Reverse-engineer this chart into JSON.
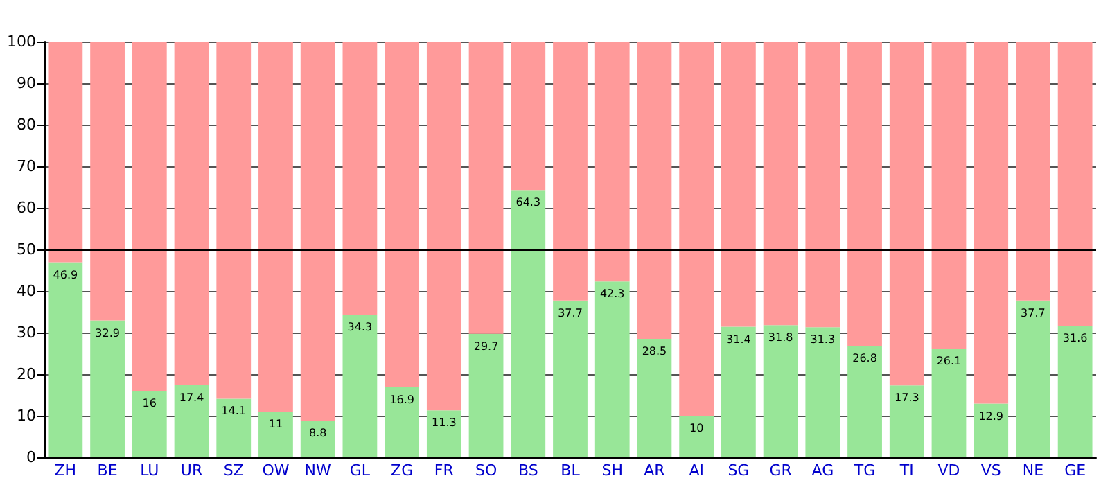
{
  "chart_data": {
    "type": "bar",
    "stacked": true,
    "categories": [
      "ZH",
      "BE",
      "LU",
      "UR",
      "SZ",
      "OW",
      "NW",
      "GL",
      "ZG",
      "FR",
      "SO",
      "BS",
      "BL",
      "SH",
      "AR",
      "AI",
      "SG",
      "GR",
      "AG",
      "TG",
      "TI",
      "VD",
      "VS",
      "NE",
      "GE"
    ],
    "series": [
      {
        "color": "#98e698",
        "values": [
          46.9,
          32.9,
          16,
          17.4,
          14.1,
          11,
          8.8,
          34.3,
          16.9,
          11.3,
          29.7,
          64.3,
          37.7,
          42.3,
          28.5,
          10,
          31.4,
          31.8,
          31.3,
          26.8,
          17.3,
          26.1,
          12.9,
          37.7,
          31.6
        ],
        "value_labels": [
          "46.9",
          "32.9",
          "16",
          "17.4",
          "14.1",
          "11",
          "8.8",
          "34.3",
          "16.9",
          "11.3",
          "29.7",
          "64.3",
          "37.7",
          "42.3",
          "28.5",
          "10",
          "31.4",
          "31.8",
          "31.3",
          "26.8",
          "17.3",
          "26.1",
          "12.9",
          "37.7",
          "31.6"
        ]
      },
      {
        "color": "#ff9a9a",
        "values": [
          53.1,
          67.1,
          84,
          82.6,
          85.9,
          89,
          91.2,
          65.7,
          83.1,
          88.7,
          70.3,
          35.7,
          62.3,
          57.7,
          71.5,
          90,
          68.6,
          68.2,
          68.7,
          73.2,
          82.7,
          73.9,
          87.1,
          62.3,
          68.4
        ]
      }
    ],
    "ylim": [
      0,
      100
    ],
    "yticks": [
      0,
      10,
      20,
      30,
      40,
      50,
      60,
      70,
      80,
      90,
      100
    ],
    "grid": "y",
    "ref_lines": [
      {
        "axis": "y",
        "value": 50,
        "color": "#000000"
      }
    ]
  }
}
